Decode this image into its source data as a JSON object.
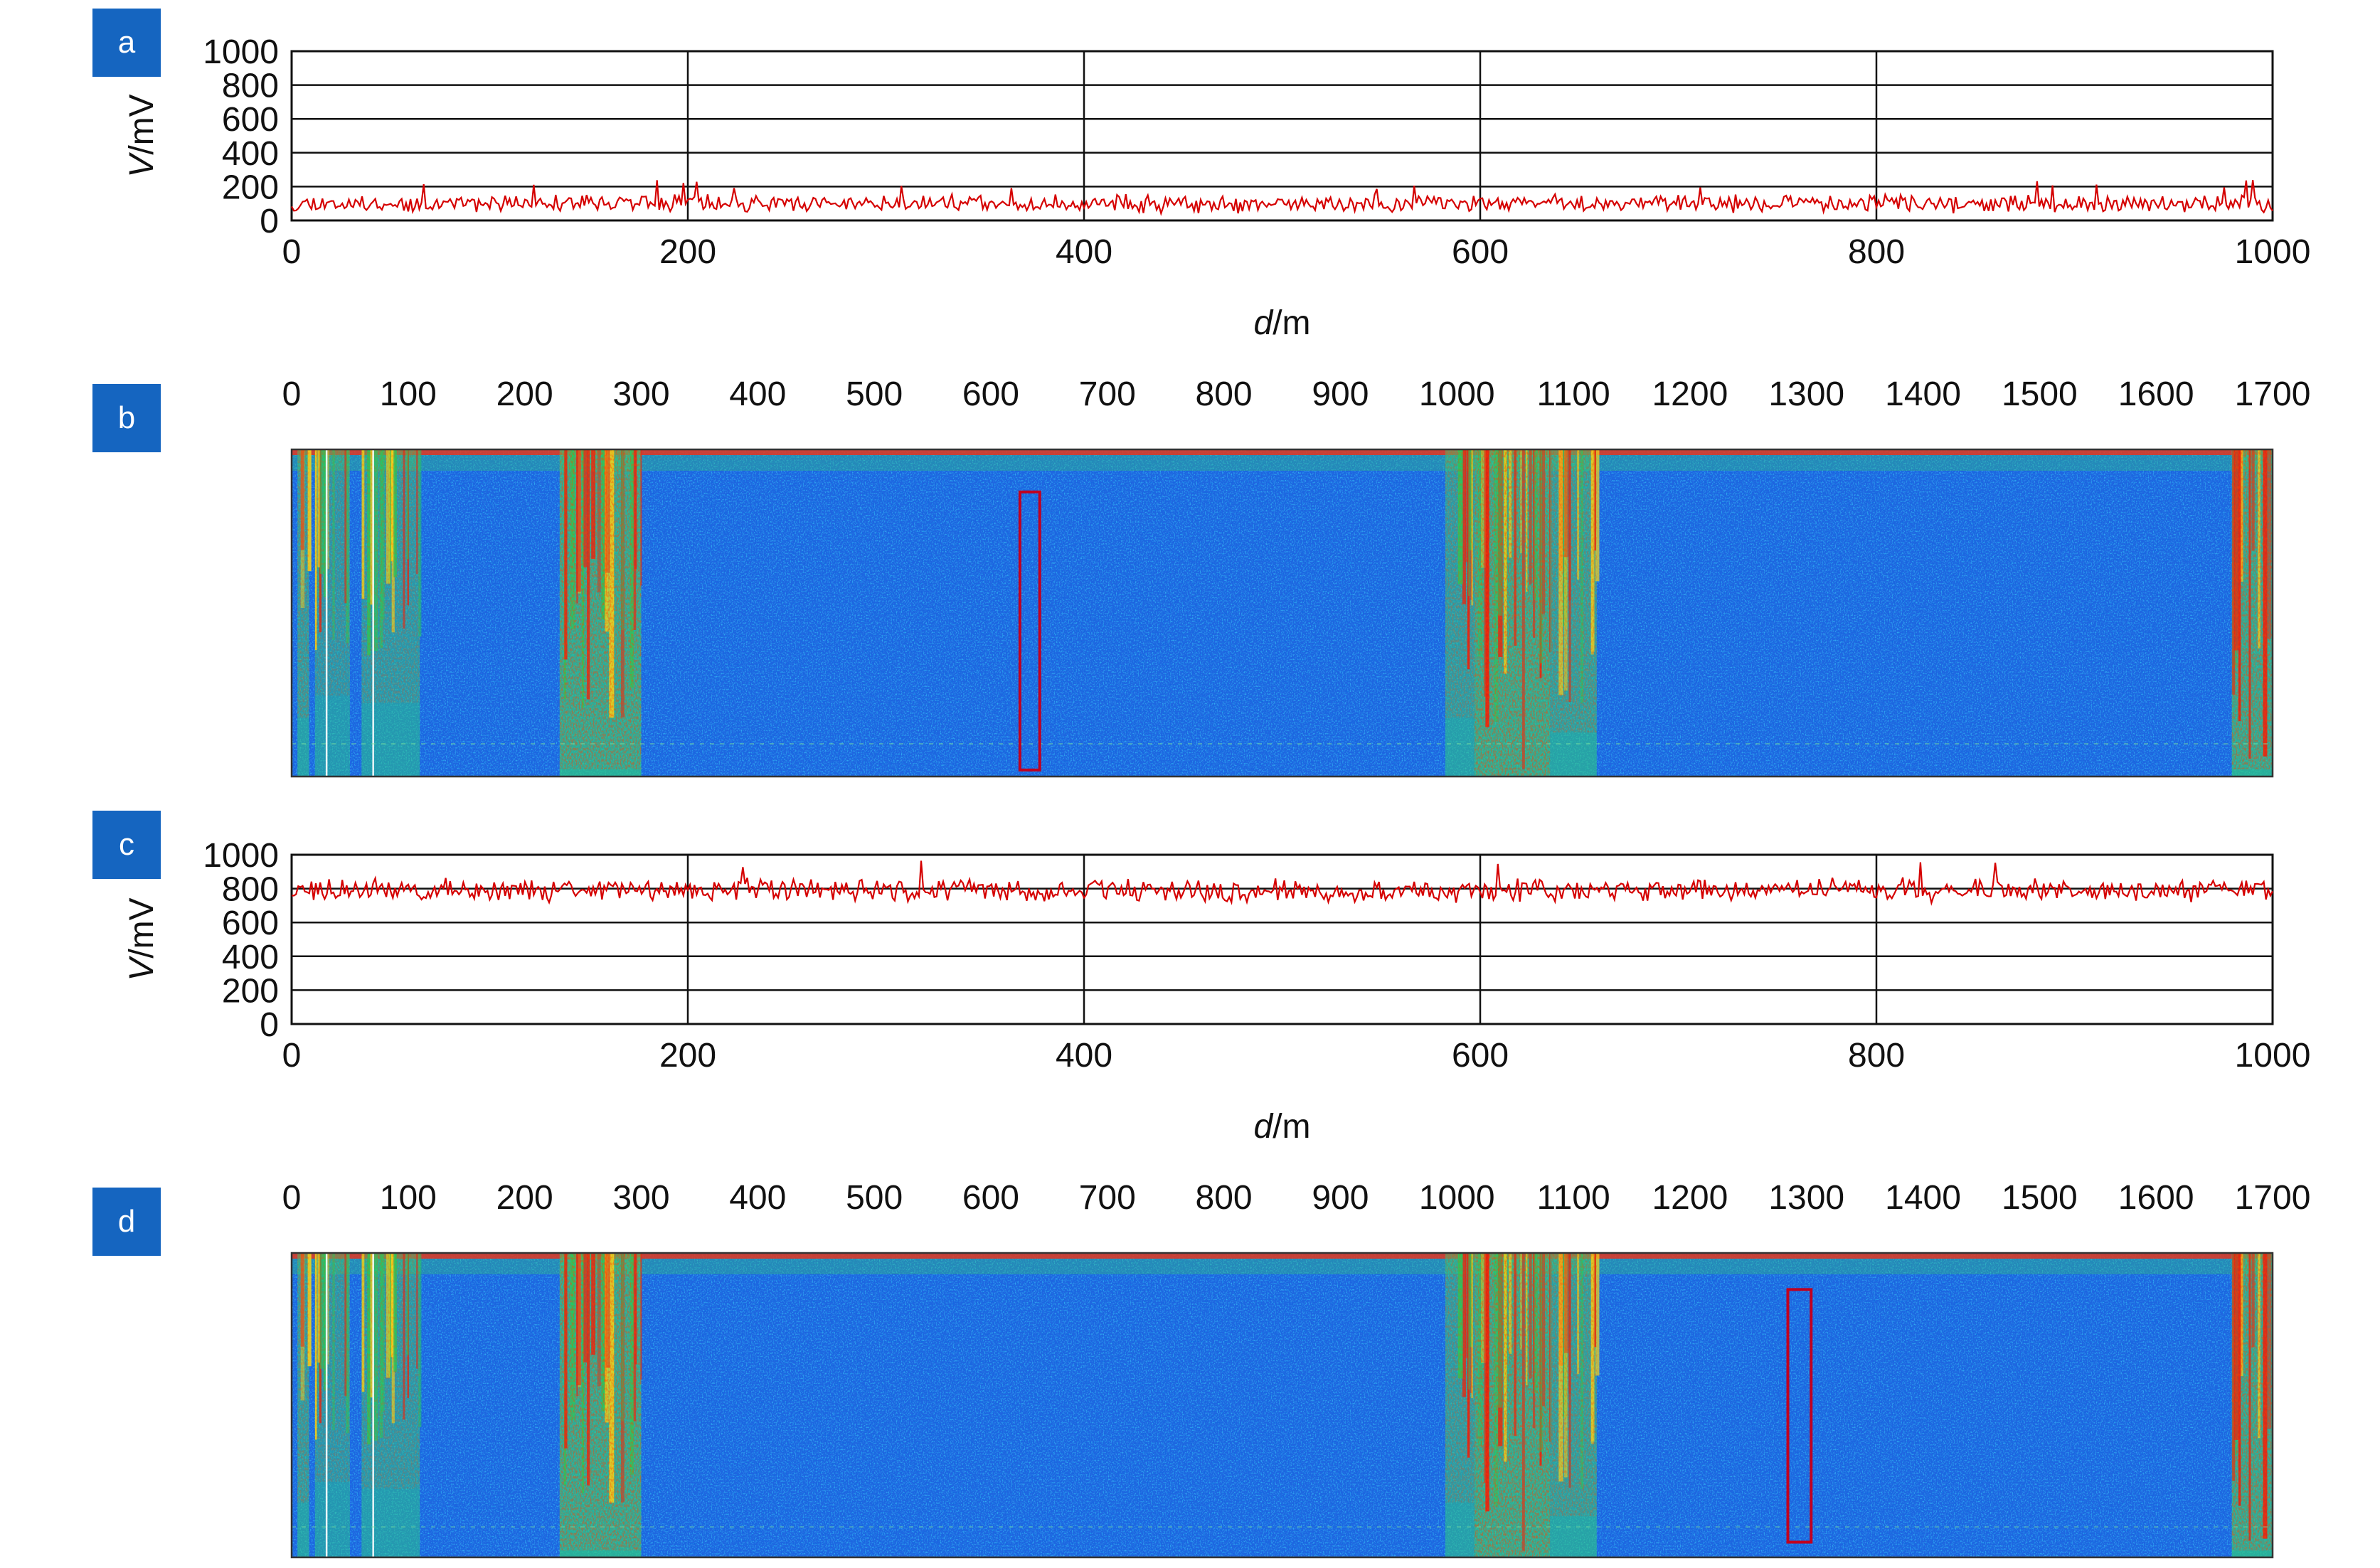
{
  "colors": {
    "badge": "#1565C0",
    "signal": "#d50000",
    "grid": "#111111",
    "box": "#c00020",
    "waterfall_bg": "#1f66e0"
  },
  "chart_data": [
    {
      "type": "line",
      "panel": "a",
      "xlabel_italic": "d",
      "xlabel_unit": "/m",
      "ylabel_italic": "V",
      "ylabel_unit": "/mV",
      "xlim": [
        0,
        1000
      ],
      "ylim": [
        0,
        1000
      ],
      "x_ticks": [
        "0",
        "200",
        "400",
        "600",
        "800",
        "1000"
      ],
      "y_ticks": [
        "0",
        "200",
        "400",
        "600",
        "800",
        "1000"
      ],
      "grid": true,
      "series": [
        {
          "baseline": 100,
          "noise_amplitude": 60,
          "spike_max": 240
        }
      ]
    },
    {
      "type": "heatmap",
      "panel": "b",
      "xlim": [
        0,
        1700
      ],
      "x_ticks": [
        "0",
        "100",
        "200",
        "300",
        "400",
        "500",
        "600",
        "700",
        "800",
        "900",
        "1000",
        "1100",
        "1200",
        "1300",
        "1400",
        "1500",
        "1600",
        "1700"
      ],
      "hot_zones": [
        {
          "from": 5,
          "to": 15,
          "level": 0.6
        },
        {
          "from": 20,
          "to": 50,
          "level": 0.45
        },
        {
          "from": 60,
          "to": 110,
          "level": 0.5
        },
        {
          "from": 230,
          "to": 300,
          "level": 0.95
        },
        {
          "from": 990,
          "to": 1015,
          "level": 0.6
        },
        {
          "from": 1015,
          "to": 1080,
          "level": 1.0
        },
        {
          "from": 1080,
          "to": 1120,
          "level": 0.7
        },
        {
          "from": 1665,
          "to": 1700,
          "level": 0.95
        }
      ],
      "highlight_box": {
        "from": 625,
        "to": 642,
        "depth_start": 0.13,
        "depth_end": 0.98
      }
    },
    {
      "type": "line",
      "panel": "c",
      "xlabel_italic": "d",
      "xlabel_unit": "/m",
      "ylabel_italic": "V",
      "ylabel_unit": "/mV",
      "xlim": [
        0,
        1000
      ],
      "ylim": [
        0,
        1000
      ],
      "x_ticks": [
        "0",
        "200",
        "400",
        "600",
        "800",
        "1000"
      ],
      "y_ticks": [
        "0",
        "200",
        "400",
        "600",
        "800",
        "1000"
      ],
      "grid": true,
      "series": [
        {
          "baseline": 790,
          "noise_amplitude": 80,
          "spike_max": 980
        }
      ]
    },
    {
      "type": "heatmap",
      "panel": "d",
      "xlim": [
        0,
        1700
      ],
      "x_ticks": [
        "0",
        "100",
        "200",
        "300",
        "400",
        "500",
        "600",
        "700",
        "800",
        "900",
        "1000",
        "1100",
        "1200",
        "1300",
        "1400",
        "1500",
        "1600",
        "1700"
      ],
      "hot_zones": [
        {
          "from": 5,
          "to": 15,
          "level": 0.6
        },
        {
          "from": 20,
          "to": 50,
          "level": 0.45
        },
        {
          "from": 60,
          "to": 110,
          "level": 0.5
        },
        {
          "from": 230,
          "to": 300,
          "level": 0.95
        },
        {
          "from": 990,
          "to": 1015,
          "level": 0.6
        },
        {
          "from": 1015,
          "to": 1080,
          "level": 1.0
        },
        {
          "from": 1080,
          "to": 1120,
          "level": 0.7
        },
        {
          "from": 1665,
          "to": 1700,
          "level": 0.95
        }
      ],
      "highlight_box": {
        "from": 1284,
        "to": 1304,
        "depth_start": 0.12,
        "depth_end": 0.95
      }
    }
  ]
}
